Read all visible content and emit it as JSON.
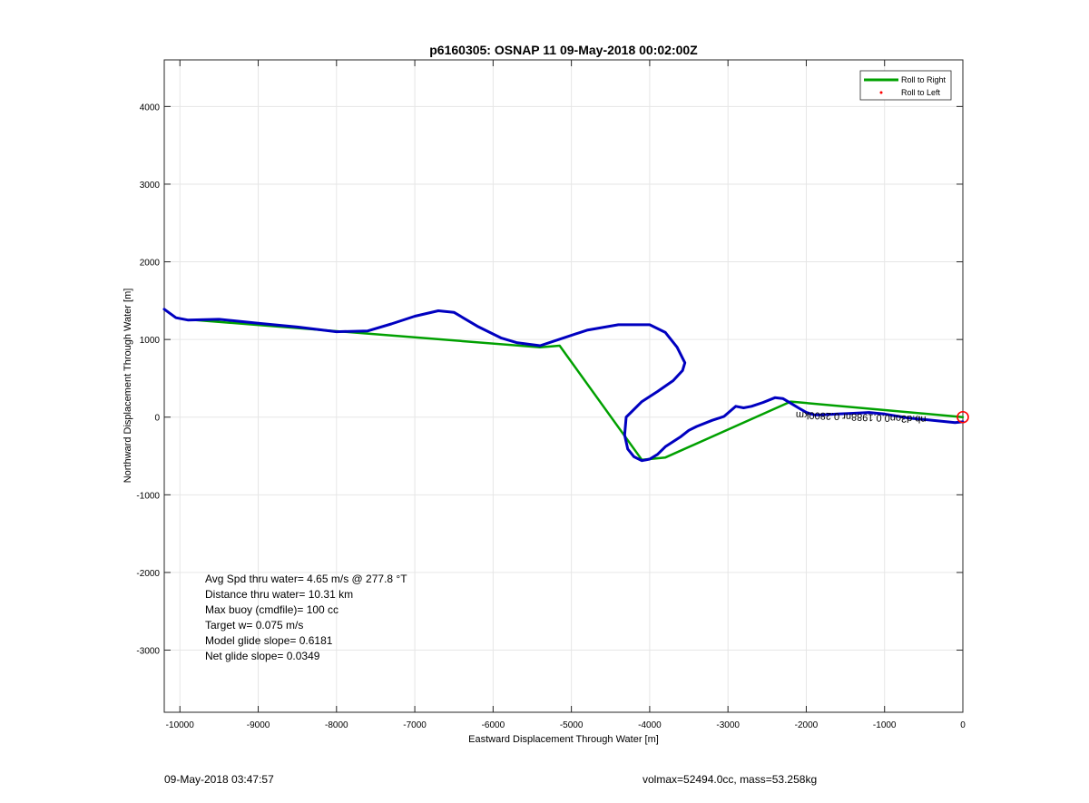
{
  "chart_data": {
    "type": "line",
    "title": "p6160305: OSNAP 11 09-May-2018 00:02:00Z",
    "xlabel": "Eastward Displacement Through Water [m]",
    "ylabel": "Northward Displacement Through Water [m]",
    "xlim": [
      -10200,
      0
    ],
    "ylim": [
      -3800,
      4600
    ],
    "xticks": [
      -10000,
      -9000,
      -8000,
      -7000,
      -6000,
      -5000,
      -4000,
      -3000,
      -2000,
      -1000,
      0
    ],
    "yticks": [
      -3000,
      -2000,
      -1000,
      0,
      1000,
      2000,
      3000,
      4000
    ],
    "grid": true,
    "legend": {
      "position": "top-right",
      "entries": [
        {
          "label": "Roll to Right",
          "color": "#00a000",
          "marker": "line"
        },
        {
          "label": "Roll to Left",
          "color": "#ff0000",
          "marker": "dot"
        }
      ]
    },
    "series": [
      {
        "color": "#00a000",
        "x": [
          0,
          -2200,
          -3800,
          -4100,
          -5150,
          -5400,
          -9800
        ],
        "y": [
          0,
          200,
          -520,
          -550,
          920,
          900,
          1250
        ]
      },
      {
        "color": "#0000c0",
        "x": [
          0,
          -100,
          -300,
          -500,
          -700,
          -1000,
          -1200,
          -1400,
          -1600,
          -1800,
          -1900,
          -2000,
          -2100,
          -2200,
          -2300,
          -2400,
          -2550,
          -2700,
          -2800,
          -2900,
          -3050,
          -3200,
          -3400,
          -3500,
          -3600,
          -3800,
          -3900,
          -4000,
          -4100,
          -4200,
          -4280,
          -4320,
          -4300,
          -4250,
          -4100,
          -3900,
          -3700,
          -3580,
          -3550,
          -3650,
          -3800,
          -4000,
          -4400,
          -4800,
          -5100,
          -5400,
          -5700,
          -5900,
          -6200,
          -6500,
          -6700,
          -7000,
          -7300,
          -7600,
          -8000,
          -8500,
          -9000,
          -9500,
          -9900,
          -10050,
          -10200
        ],
        "y": [
          -60,
          -70,
          -50,
          -30,
          -10,
          40,
          60,
          50,
          40,
          30,
          30,
          60,
          120,
          180,
          240,
          250,
          190,
          140,
          120,
          140,
          10,
          -40,
          -120,
          -170,
          -250,
          -380,
          -480,
          -540,
          -560,
          -510,
          -410,
          -230,
          0,
          50,
          200,
          330,
          470,
          600,
          700,
          900,
          1090,
          1190,
          1190,
          1120,
          1020,
          920,
          960,
          1020,
          1170,
          1350,
          1370,
          1300,
          1200,
          1110,
          1100,
          1160,
          1210,
          1260,
          1250,
          1280,
          1390
        ]
      }
    ],
    "end_marker": {
      "x": 0,
      "y": 0,
      "color": "#ff0000"
    },
    "track_label": {
      "text": "nb.d3on0.0.1988nr 0.2800km",
      "x": -1300,
      "y": 40
    },
    "annotations": [
      "Avg Spd thru water=  4.65 m/s @ 277.8 °T",
      "Distance thru water= 10.31 km",
      "Max buoy (cmdfile)= 100 cc",
      "Target w= 0.075 m/s",
      "Model glide slope= 0.6181",
      "Net glide slope= 0.0349"
    ]
  },
  "footer": {
    "left": "09-May-2018 03:47:57",
    "right": "volmax=52494.0cc, mass=53.258kg"
  }
}
